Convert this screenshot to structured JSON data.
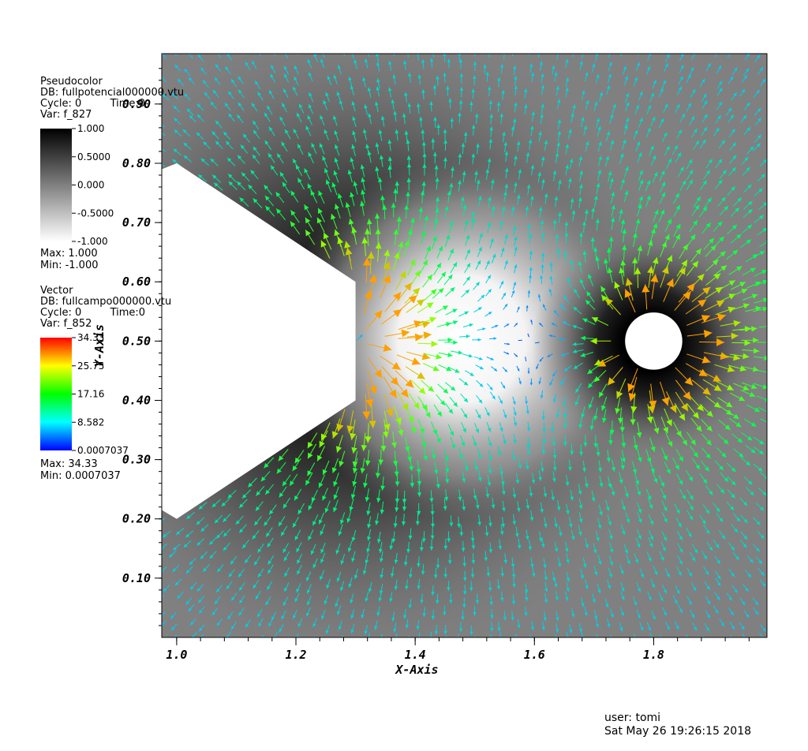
{
  "chart_data": {
    "type": "vector field over pseudocolor",
    "xlabel": "X-Axis",
    "ylabel": "Y-Axis",
    "xlim": [
      0.975,
      1.99
    ],
    "ylim": [
      0.0,
      0.985
    ],
    "xticks": [
      "1.0",
      "1.2",
      "1.4",
      "1.6",
      "1.8"
    ],
    "yticks": [
      "0.10",
      "0.20",
      "0.30",
      "0.40",
      "0.50",
      "0.60",
      "0.70",
      "0.80",
      "0.90"
    ],
    "xtick_values": [
      1.0,
      1.2,
      1.4,
      1.6,
      1.8
    ],
    "ytick_values": [
      0.1,
      0.2,
      0.3,
      0.4,
      0.5,
      0.6,
      0.7,
      0.8,
      0.9
    ],
    "grid": false,
    "obstacles": {
      "hexagon_vertices": [
        [
          0.975,
          0.79
        ],
        [
          1.0,
          0.8
        ],
        [
          1.3,
          0.6
        ],
        [
          1.3,
          0.4
        ],
        [
          1.0,
          0.2
        ],
        [
          0.975,
          0.215
        ]
      ],
      "circle": {
        "center": [
          1.8,
          0.5
        ],
        "radius": 0.048
      }
    },
    "pseudocolor": {
      "title": "Pseudocolor",
      "db": "DB: fullpotencial000000.vtu",
      "cycle": "Cycle: 0",
      "time": "Time:0",
      "var": "Var: f_827",
      "colormap": "gray",
      "labels": [
        "1.000",
        "0.5000",
        "0.000",
        "-0.5000",
        "-1.000"
      ],
      "max": "Max:  1.000",
      "min": "Min: -1.000"
    },
    "vector": {
      "title": "Vector",
      "db": "DB: fullcampo000000.vtu",
      "cycle": "Cycle: 0",
      "time": "Time:0",
      "var": "Var: f_852",
      "colormap": "hot",
      "labels": [
        "34.33",
        "25.75",
        "17.16",
        "8.582",
        "0.0007037"
      ],
      "max": "Max:  34.33",
      "min": "Min:  0.0007037"
    }
  },
  "footer": {
    "user": "user: tomi",
    "date": "Sat May 26 19:26:15 2018"
  }
}
